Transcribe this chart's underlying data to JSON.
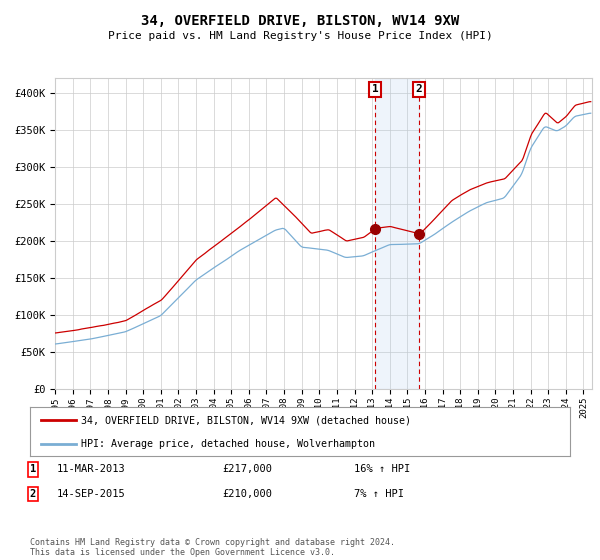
{
  "title": "34, OVERFIELD DRIVE, BILSTON, WV14 9XW",
  "subtitle": "Price paid vs. HM Land Registry's House Price Index (HPI)",
  "ylabel_ticks": [
    "£0",
    "£50K",
    "£100K",
    "£150K",
    "£200K",
    "£250K",
    "£300K",
    "£350K",
    "£400K"
  ],
  "ytick_values": [
    0,
    50000,
    100000,
    150000,
    200000,
    250000,
    300000,
    350000,
    400000
  ],
  "ylim": [
    0,
    420000
  ],
  "xlim_start": 1995.0,
  "xlim_end": 2025.5,
  "transaction1_x": 2013.17,
  "transaction1_price": 217000,
  "transaction2_x": 2015.67,
  "transaction2_price": 210000,
  "legend_line1": "34, OVERFIELD DRIVE, BILSTON, WV14 9XW (detached house)",
  "legend_line2": "HPI: Average price, detached house, Wolverhampton",
  "footnote": "Contains HM Land Registry data © Crown copyright and database right 2024.\nThis data is licensed under the Open Government Licence v3.0.",
  "red_color": "#cc0000",
  "blue_color": "#7aaed4",
  "highlight_color": "#ddeeff",
  "grid_color": "#cccccc",
  "bg_color": "#ffffff"
}
